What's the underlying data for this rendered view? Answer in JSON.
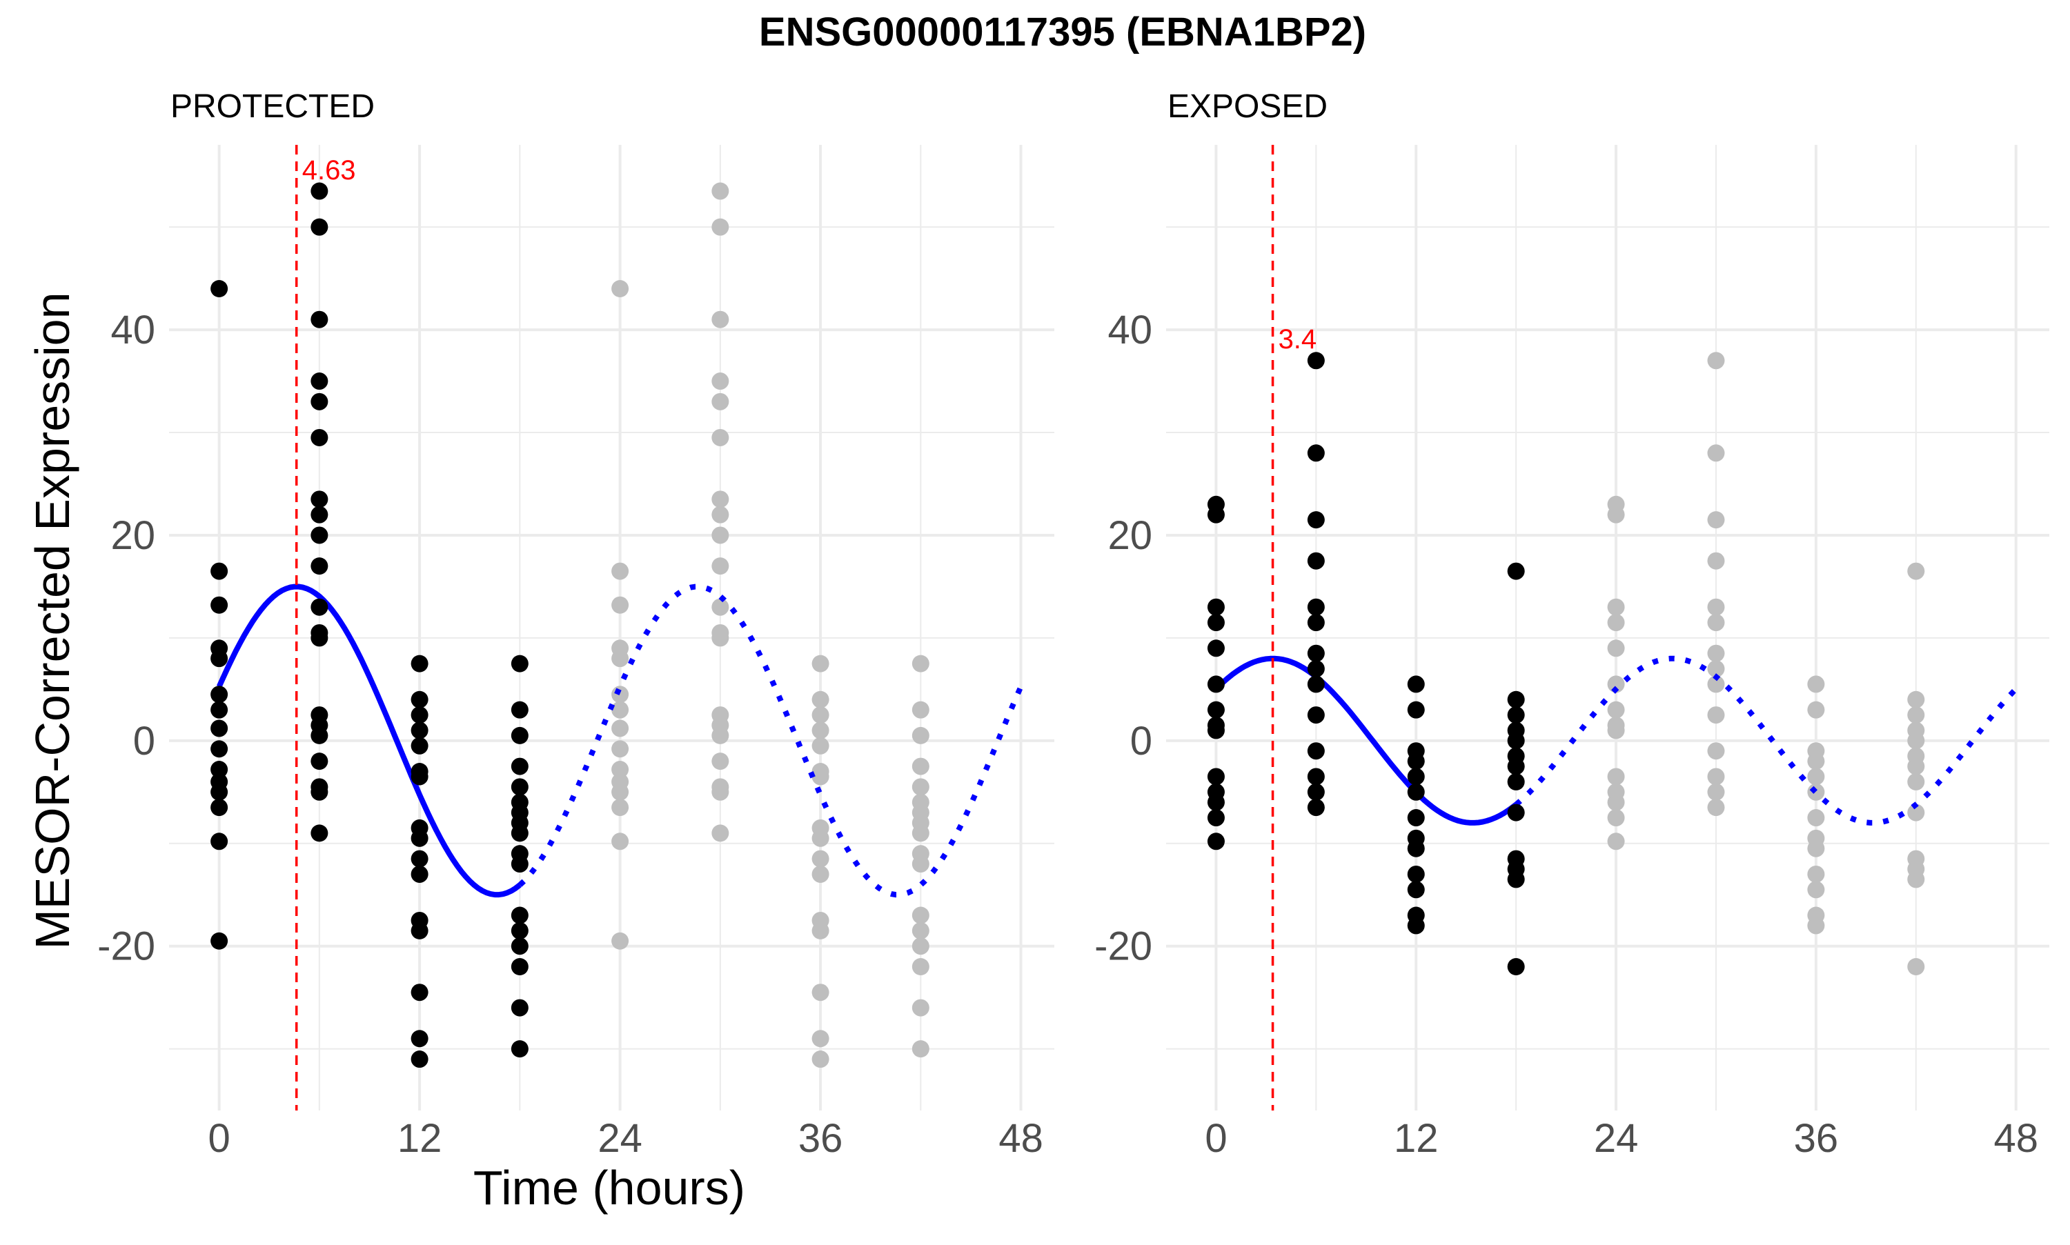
{
  "chart_data": {
    "type": "scatter",
    "title": "ENSG00000117395 (EBNA1BP2)",
    "xlabel": "Time (hours)",
    "ylabel": "MESOR-Corrected Expression",
    "xlim": [
      -3,
      50
    ],
    "ylim": [
      -36,
      58
    ],
    "xticks": [
      0,
      12,
      24,
      36,
      48
    ],
    "xtick_labels": [
      "0",
      "12",
      "24",
      "36",
      "48"
    ],
    "yticks": [
      -20,
      0,
      20,
      40
    ],
    "ytick_labels": [
      "-20",
      "0",
      "20",
      "40"
    ],
    "grid": true,
    "colors": {
      "observed": "#000000",
      "repeated": "#bebebe",
      "fit": "#0000ff",
      "peak_line": "#ff0000",
      "grid": "#ebebeb"
    },
    "panels": [
      {
        "label": "PROTECTED",
        "peak_time": 4.63,
        "peak_label": "4.63",
        "fit": {
          "mesor": 0,
          "amplitude": 15,
          "period": 24,
          "acrophase": 4.63
        },
        "points": [
          {
            "x": 0,
            "y": [
              44,
              16.5,
              13.2,
              9,
              8,
              4.5,
              3,
              1.2,
              -0.8,
              -2.8,
              -4,
              -5,
              -6.5,
              -9.8,
              -19.5
            ]
          },
          {
            "x": 6,
            "y": [
              53.5,
              50,
              41,
              35,
              33,
              29.5,
              23.5,
              22,
              20,
              17,
              13,
              10.5,
              10,
              2.5,
              1.5,
              0.5,
              -2,
              -4.5,
              -5,
              -9
            ]
          },
          {
            "x": 12,
            "y": [
              7.5,
              4,
              2.5,
              1,
              -0.5,
              -3,
              -3.5,
              -8.5,
              -9.5,
              -11.5,
              -13,
              -17.5,
              -18.5,
              -24.5,
              -29,
              -31
            ]
          },
          {
            "x": 18,
            "y": [
              7.5,
              3,
              0.5,
              -2.5,
              -4.5,
              -6,
              -7,
              -8,
              -9,
              -11,
              -12,
              -17,
              -18.5,
              -20,
              -22,
              -26,
              -30
            ]
          }
        ]
      },
      {
        "label": "EXPOSED",
        "peak_time": 3.4,
        "peak_label": "3.4",
        "fit": {
          "mesor": 0,
          "amplitude": 8,
          "period": 24,
          "acrophase": 3.4
        },
        "points": [
          {
            "x": 0,
            "y": [
              23,
              22,
              13,
              11.5,
              9,
              5.5,
              3,
              1.5,
              1,
              -3.5,
              -5,
              -6,
              -7.5,
              -9.8
            ]
          },
          {
            "x": 6,
            "y": [
              37,
              28,
              21.5,
              17.5,
              13,
              11.5,
              8.5,
              7,
              5.5,
              2.5,
              -1,
              -3.5,
              -5,
              -6.5
            ]
          },
          {
            "x": 12,
            "y": [
              5.5,
              3,
              -1,
              -2,
              -3.5,
              -5,
              -7.5,
              -9.5,
              -10.5,
              -13,
              -14.5,
              -17,
              -18
            ]
          },
          {
            "x": 18,
            "y": [
              16.5,
              4,
              2.5,
              1,
              0,
              -1.5,
              -2.5,
              -4,
              -7,
              -11.5,
              -12.5,
              -13.5,
              -22
            ]
          }
        ]
      }
    ]
  }
}
